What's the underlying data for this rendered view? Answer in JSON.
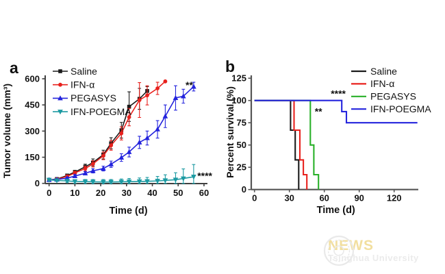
{
  "page": {
    "background": "#ffffff"
  },
  "panel_a": {
    "label": "a"
  },
  "panel_b": {
    "label": "b"
  },
  "watermark": {
    "news": "NEWS",
    "subtitle": "Tsinghua University",
    "news_color": "#f2df9f",
    "subtitle_color": "#ebebeb",
    "seal_color": "#e9e9e9"
  },
  "chart_data": [
    {
      "type": "line",
      "panel": "a",
      "title": "",
      "xlabel": "Time (d)",
      "ylabel": "Tumor volume (mm³)",
      "xlim": [
        0,
        60
      ],
      "xticks": [
        0,
        10,
        20,
        30,
        40,
        50,
        60
      ],
      "ylim": [
        0,
        600
      ],
      "yticks": [
        0,
        150,
        300,
        450,
        600
      ],
      "grid": false,
      "legend_position": "top-left-inside",
      "axis_color": "#3f3f3f",
      "x": [
        0,
        3,
        7,
        10,
        14,
        17,
        21,
        24,
        28,
        31,
        35,
        38,
        42,
        45,
        49,
        52,
        56
      ],
      "series": [
        {
          "name": "Saline",
          "color": "#1a1a1a",
          "marker": "square",
          "values": [
            20,
            25,
            45,
            65,
            95,
            120,
            165,
            230,
            305,
            440,
            485,
            530
          ],
          "errors": [
            5,
            6,
            8,
            10,
            15,
            20,
            25,
            32,
            45,
            85,
            60,
            25
          ]
        },
        {
          "name": "IFN-α",
          "color": "#e8211d",
          "marker": "circle",
          "values": [
            20,
            24,
            40,
            60,
            85,
            112,
            158,
            218,
            287,
            380,
            478,
            505,
            545,
            585
          ],
          "errors": [
            5,
            6,
            8,
            10,
            14,
            18,
            22,
            28,
            38,
            50,
            100,
            55,
            35,
            0
          ]
        },
        {
          "name": "PEGASYS",
          "color": "#2424dd",
          "marker": "triangle-up",
          "values": [
            20,
            22,
            30,
            42,
            58,
            72,
            85,
            110,
            148,
            180,
            235,
            260,
            310,
            385,
            490,
            500,
            555
          ],
          "errors": [
            5,
            5,
            6,
            8,
            10,
            12,
            14,
            18,
            22,
            28,
            35,
            40,
            50,
            65,
            70,
            40,
            25
          ]
        },
        {
          "name": "IFN-POEGMA",
          "color": "#1c9aa2",
          "marker": "triangle-down",
          "values": [
            20,
            17,
            14,
            11,
            10,
            9,
            8,
            8,
            9,
            10,
            11,
            12,
            14,
            17,
            21,
            28,
            38
          ],
          "errors": [
            4,
            5,
            8,
            10,
            12,
            13,
            14,
            14,
            16,
            18,
            20,
            22,
            26,
            32,
            40,
            55,
            70
          ]
        }
      ],
      "annotations": [
        {
          "text": "**",
          "x": 54.3,
          "y": 545
        },
        {
          "text": "****",
          "x": 60.3,
          "y": 25
        }
      ]
    },
    {
      "type": "step-survival",
      "panel": "b",
      "title": "",
      "xlabel": "Time (d)",
      "ylabel": "Percent survival (%)",
      "xlim": [
        0,
        140
      ],
      "xticks": [
        0,
        30,
        60,
        90,
        120
      ],
      "ylim": [
        0,
        125
      ],
      "yticks": [
        0,
        25,
        50,
        75,
        100,
        125
      ],
      "grid": false,
      "legend_position": "top-right-inside",
      "axis_color": "#555555",
      "series": [
        {
          "name": "Saline",
          "color": "#1a1a1a",
          "points": [
            [
              0,
              100
            ],
            [
              31,
              100
            ],
            [
              31,
              66.7
            ],
            [
              35,
              66.7
            ],
            [
              35,
              33.3
            ],
            [
              38,
              33.3
            ],
            [
              38,
              0
            ]
          ]
        },
        {
          "name": "IFN-α",
          "color": "#e8211d",
          "points": [
            [
              0,
              100
            ],
            [
              34,
              100
            ],
            [
              34,
              66.7
            ],
            [
              39,
              66.7
            ],
            [
              39,
              33.3
            ],
            [
              42,
              33.3
            ],
            [
              42,
              16.7
            ],
            [
              45,
              16.7
            ],
            [
              45,
              0
            ]
          ]
        },
        {
          "name": "PEGASYS",
          "color": "#28b028",
          "points": [
            [
              0,
              100
            ],
            [
              48,
              100
            ],
            [
              48,
              50
            ],
            [
              51,
              50
            ],
            [
              51,
              16.7
            ],
            [
              55,
              16.7
            ],
            [
              55,
              0
            ]
          ]
        },
        {
          "name": "IFN-POEGMA",
          "color": "#2424dd",
          "points": [
            [
              0,
              100
            ],
            [
              75,
              100
            ],
            [
              75,
              87.5
            ],
            [
              79,
              87.5
            ],
            [
              79,
              75
            ],
            [
              140,
              75
            ]
          ]
        }
      ],
      "annotations": [
        {
          "text": "****",
          "x": 72,
          "y": 104
        },
        {
          "text": "**",
          "x": 55,
          "y": 84
        }
      ]
    }
  ]
}
